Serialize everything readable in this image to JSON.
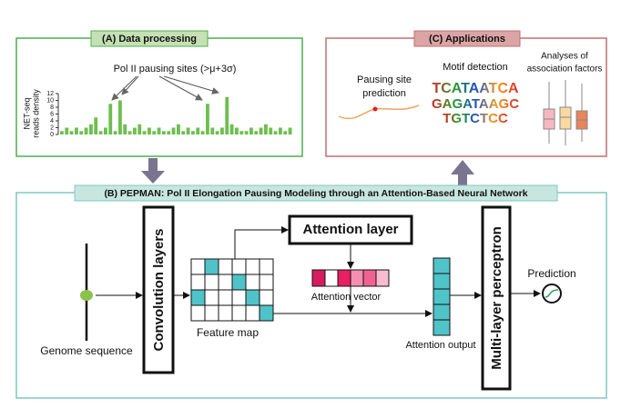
{
  "panel_a": {
    "title": "(A) Data processing",
    "annotation": "Pol II pausing sites (>μ+3σ)",
    "y_label": [
      "NET-seq",
      "reads density"
    ],
    "ylim": [
      0,
      12
    ],
    "yticks": [
      0,
      2,
      4,
      6,
      8,
      10,
      12
    ],
    "color": "#6dbf4f",
    "values": [
      1,
      2,
      1,
      2,
      1,
      2,
      3,
      5,
      1,
      2,
      9,
      1,
      10,
      3,
      1,
      2,
      3,
      1,
      2,
      1,
      2,
      1,
      1,
      2,
      3,
      1,
      2,
      1,
      2,
      1,
      9,
      2,
      1,
      2,
      11,
      3,
      2,
      1,
      1,
      2,
      1,
      2,
      3,
      2,
      1,
      2,
      1,
      2
    ]
  },
  "panel_b": {
    "title": "(B) PEPMAN: Pol II Elongation Pausing Modeling through an Attention-Based Neural Network",
    "input": "Genome sequence",
    "conv": "Convolution layers",
    "feature_map": "Feature map",
    "attention_layer": "Attention layer",
    "attention_vector": "Attention vector",
    "attention_output": "Attention output",
    "mlp": "Multi-layer perceptron",
    "output": "Prediction"
  },
  "panel_c": {
    "title": "(C) Applications",
    "items": [
      {
        "label": [
          "Pausing site",
          "prediction"
        ]
      },
      {
        "label": [
          "Motif detection"
        ],
        "logo": [
          "TCATAATCA",
          "GAGATAAGC",
          "TGTCTCC"
        ]
      },
      {
        "label": [
          "Analyses of",
          "association factors"
        ]
      }
    ]
  }
}
